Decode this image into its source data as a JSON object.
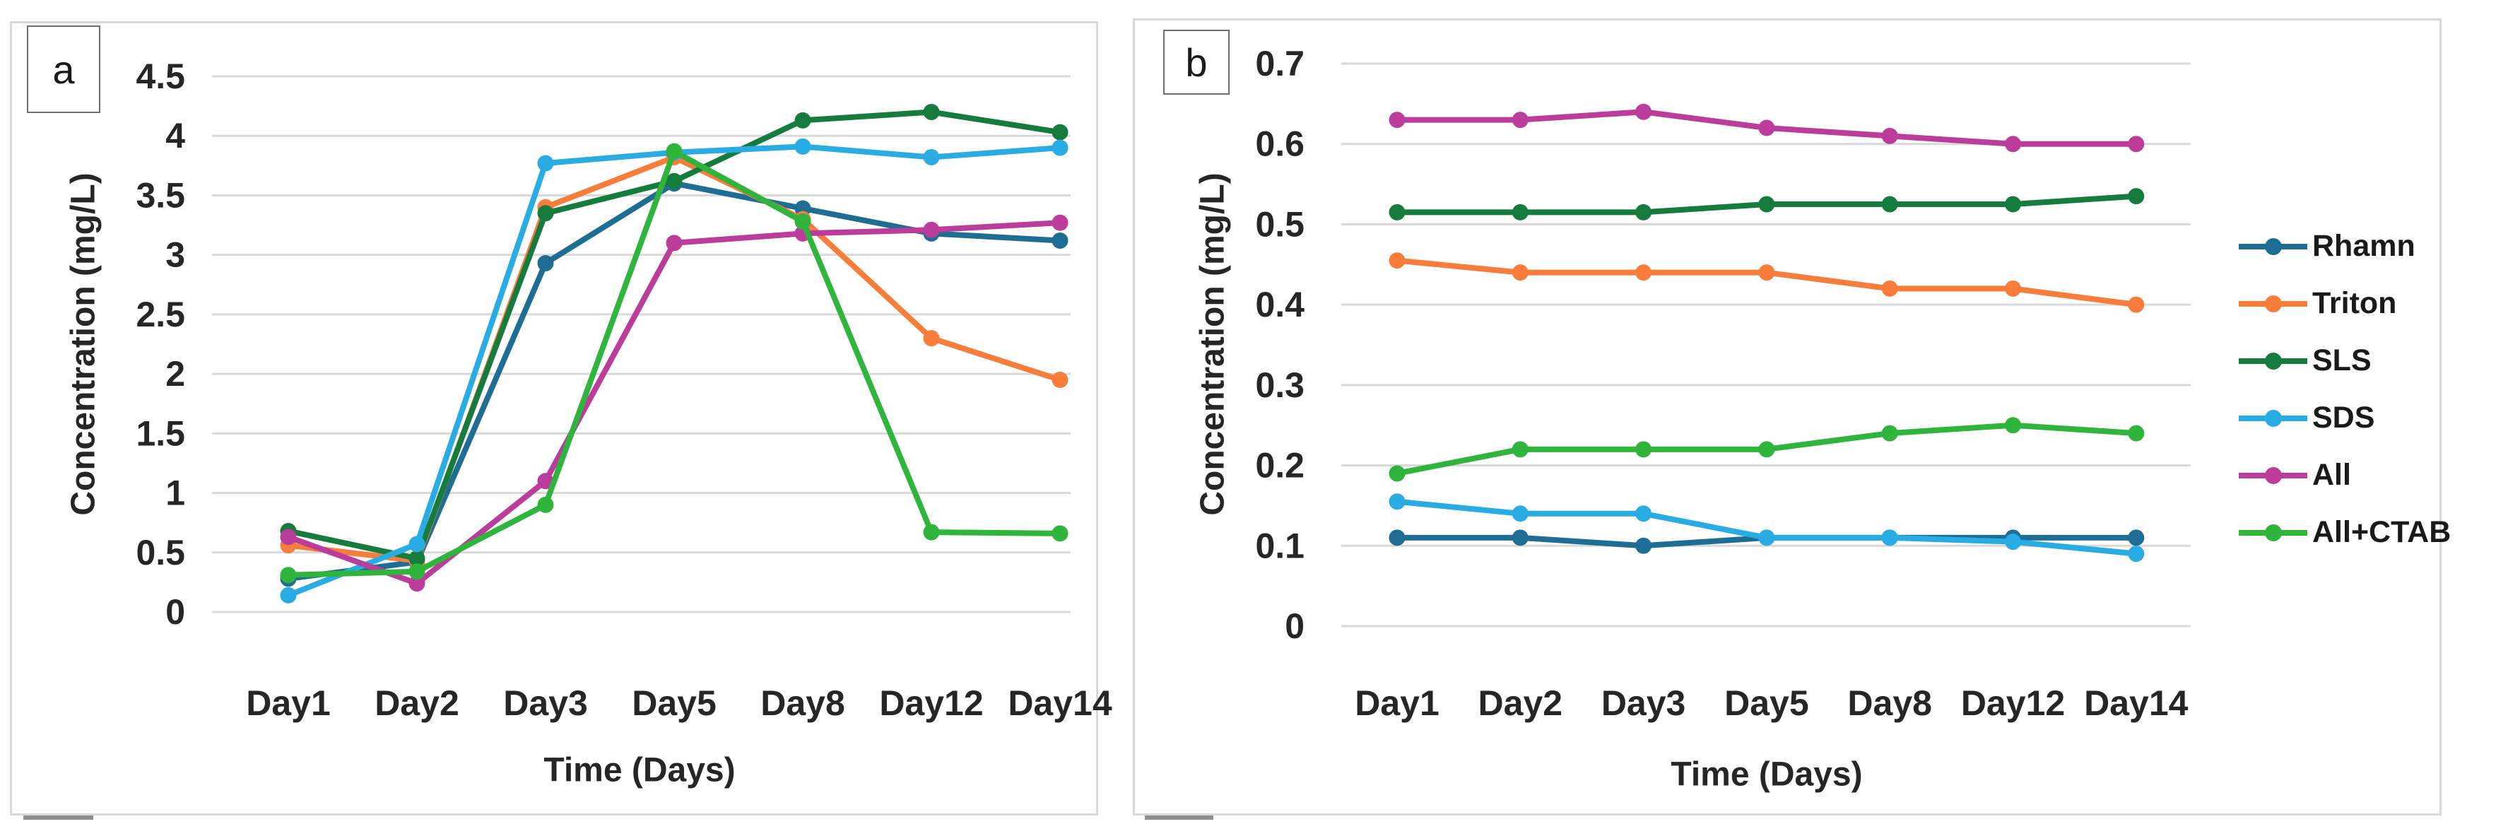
{
  "figure": {
    "panel_a": {
      "label": "a",
      "y_title": "Concentration  (mg/L)",
      "x_title": "Time (Days)"
    },
    "panel_b": {
      "label": "b",
      "y_title": "Concentration (mg/L)",
      "x_title": "Time (Days)"
    }
  },
  "legend": {
    "position": "right",
    "items": [
      {
        "label": "Rhamn",
        "color": "#1E6D95"
      },
      {
        "label": "Triton",
        "color": "#F87D3B"
      },
      {
        "label": "SLS",
        "color": "#167C3D"
      },
      {
        "label": "SDS",
        "color": "#29ACE3"
      },
      {
        "label": "All",
        "color": "#BC3C9C"
      },
      {
        "label": "All+CTAB",
        "color": "#2FB43C"
      }
    ]
  },
  "chart_data": [
    {
      "panel": "a",
      "type": "line",
      "categories": [
        "Day1",
        "Day2",
        "Day3",
        "Day5",
        "Day8",
        "Day12",
        "Day14"
      ],
      "xlabel": "Time (Days)",
      "ylabel": "Concentration (mg/L)",
      "ylim": [
        0,
        4.5
      ],
      "ytick_step": 0.5,
      "ytick_labels": [
        "4.5",
        "4",
        "3.5",
        "3",
        "2.5",
        "2",
        "1.5",
        "1",
        "0.5",
        "0"
      ],
      "grid": true,
      "legend_position": "none",
      "series": [
        {
          "name": "Rhamn",
          "color": "#1E6D95",
          "values": [
            0.28,
            0.42,
            2.93,
            3.6,
            3.39,
            3.18,
            3.12
          ]
        },
        {
          "name": "Triton",
          "color": "#F87D3B",
          "values": [
            0.56,
            0.43,
            3.4,
            3.82,
            3.3,
            2.3,
            1.95
          ]
        },
        {
          "name": "SLS",
          "color": "#167C3D",
          "values": [
            0.68,
            0.45,
            3.35,
            3.62,
            4.13,
            4.2,
            4.03
          ]
        },
        {
          "name": "SDS",
          "color": "#29ACE3",
          "values": [
            0.14,
            0.57,
            3.77,
            3.86,
            3.91,
            3.82,
            3.9
          ]
        },
        {
          "name": "All",
          "color": "#BC3C9C",
          "values": [
            0.63,
            0.24,
            1.1,
            3.1,
            3.18,
            3.21,
            3.27
          ]
        },
        {
          "name": "All+CTAB",
          "color": "#2FB43C",
          "values": [
            0.31,
            0.34,
            0.9,
            3.87,
            3.28,
            0.67,
            0.66
          ]
        }
      ]
    },
    {
      "panel": "b",
      "type": "line",
      "categories": [
        "Day1",
        "Day2",
        "Day3",
        "Day5",
        "Day8",
        "Day12",
        "Day14"
      ],
      "xlabel": "Time (Days)",
      "ylabel": "Concentration (mg/L)",
      "ylim": [
        0,
        0.7
      ],
      "ytick_step": 0.1,
      "ytick_labels": [
        "0.7",
        "0.6",
        "0.5",
        "0.4",
        "0.3",
        "0.2",
        "0.1",
        "0"
      ],
      "grid": true,
      "legend_position": "right",
      "series": [
        {
          "name": "Rhamn",
          "color": "#1E6D95",
          "values": [
            0.11,
            0.11,
            0.1,
            0.11,
            0.11,
            0.11,
            0.11
          ]
        },
        {
          "name": "Triton",
          "color": "#F87D3B",
          "values": [
            0.455,
            0.44,
            0.44,
            0.44,
            0.42,
            0.42,
            0.4
          ]
        },
        {
          "name": "SLS",
          "color": "#167C3D",
          "values": [
            0.515,
            0.515,
            0.515,
            0.525,
            0.525,
            0.525,
            0.535
          ]
        },
        {
          "name": "SDS",
          "color": "#29ACE3",
          "values": [
            0.155,
            0.14,
            0.14,
            0.11,
            0.11,
            0.105,
            0.09
          ]
        },
        {
          "name": "All",
          "color": "#BC3C9C",
          "values": [
            0.63,
            0.63,
            0.64,
            0.62,
            0.61,
            0.6,
            0.6
          ]
        },
        {
          "name": "All+CTAB",
          "color": "#2FB43C",
          "values": [
            0.19,
            0.22,
            0.22,
            0.22,
            0.24,
            0.25,
            0.24
          ]
        }
      ]
    }
  ]
}
